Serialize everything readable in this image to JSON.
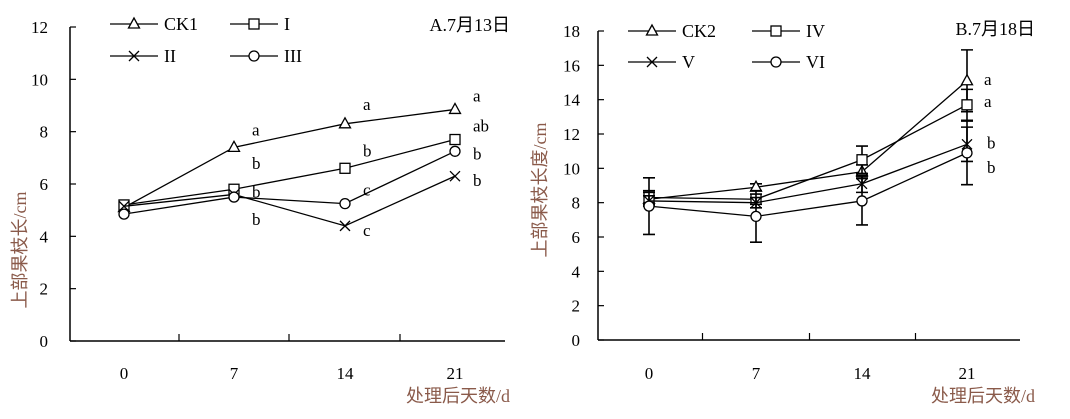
{
  "chart_data": [
    {
      "type": "line",
      "panel_title": "A.7月13日",
      "xlabel": "处理后天数/d",
      "ylabel": "上部果枝长/cm",
      "categories": [
        "0",
        "7",
        "14",
        "21"
      ],
      "ylim": [
        0,
        12
      ],
      "yticks": [
        "0",
        "2",
        "4",
        "6",
        "8",
        "10",
        "12"
      ],
      "grid": false,
      "legend": "top-left",
      "series": [
        {
          "name": "CK1",
          "marker": "triangle",
          "values": [
            5.1,
            7.4,
            8.3,
            8.85
          ],
          "letters": [
            "",
            "a",
            "a",
            "a"
          ]
        },
        {
          "name": "I",
          "marker": "square",
          "values": [
            5.2,
            5.8,
            6.6,
            7.7
          ],
          "letters": [
            "",
            "b",
            "b",
            "ab"
          ]
        },
        {
          "name": "II",
          "marker": "x",
          "values": [
            5.15,
            5.6,
            4.4,
            6.3
          ],
          "letters": [
            "",
            "b",
            "c",
            "b"
          ]
        },
        {
          "name": "III",
          "marker": "circle",
          "values": [
            4.85,
            5.5,
            5.25,
            7.25
          ],
          "letters": [
            "",
            "b",
            "c",
            "b"
          ]
        }
      ]
    },
    {
      "type": "line",
      "panel_title": "B.7月18日",
      "xlabel": "处理后天数/d",
      "ylabel": "上部果枝长度/cm",
      "categories": [
        "0",
        "7",
        "14",
        "21"
      ],
      "ylim": [
        0,
        18
      ],
      "yticks": [
        "0",
        "2",
        "4",
        "6",
        "8",
        "10",
        "12",
        "14",
        "16",
        "18"
      ],
      "grid": false,
      "legend": "top-left",
      "series": [
        {
          "name": "CK2",
          "marker": "triangle",
          "values": [
            8.2,
            8.9,
            9.8,
            15.1
          ],
          "errors": [
            0.4,
            0.2,
            0.4,
            1.8
          ],
          "letters": [
            "",
            "",
            "",
            "a"
          ]
        },
        {
          "name": "IV",
          "marker": "square",
          "values": [
            8.3,
            8.2,
            10.5,
            13.7
          ],
          "errors": [
            0.4,
            0.3,
            0.8,
            0.9
          ],
          "letters": [
            "",
            "",
            "",
            "a"
          ]
        },
        {
          "name": "V",
          "marker": "x",
          "values": [
            8.1,
            8.0,
            9.1,
            11.4
          ],
          "errors": [
            0.3,
            0.3,
            0.5,
            1.0
          ],
          "letters": [
            "",
            "",
            "",
            "b"
          ]
        },
        {
          "name": "VI",
          "marker": "circle",
          "values": [
            7.8,
            7.2,
            8.1,
            10.9
          ],
          "errors": [
            1.65,
            1.5,
            1.4,
            1.85
          ],
          "letters": [
            "",
            "",
            "",
            "b"
          ]
        }
      ]
    }
  ]
}
